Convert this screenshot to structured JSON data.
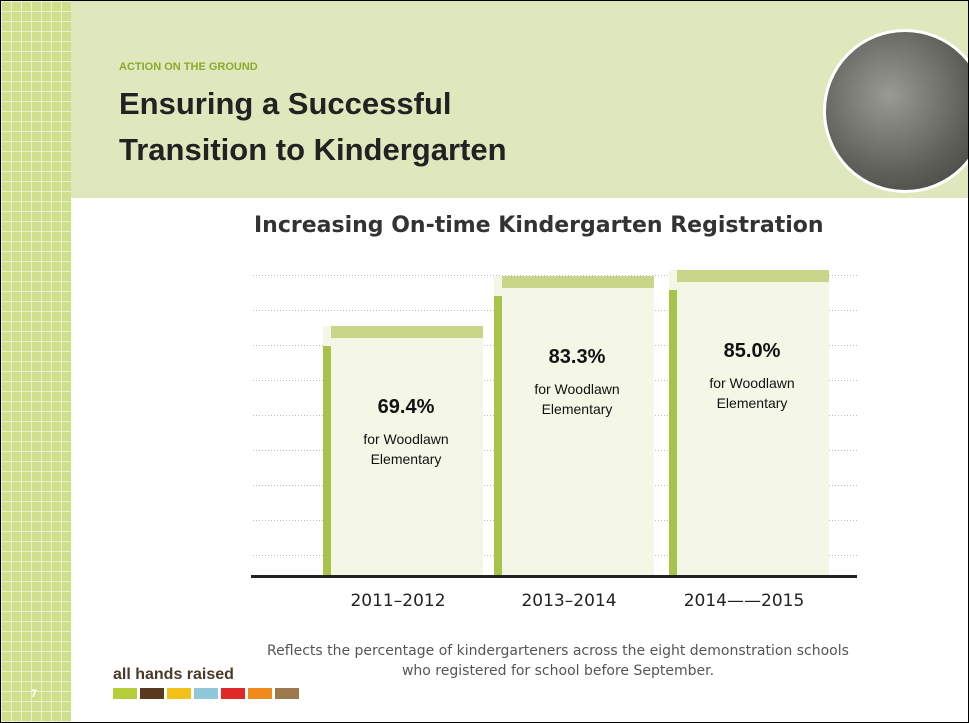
{
  "header": {
    "kicker": "ACTION ON THE GROUND",
    "title": "Ensuring a Successful Transition to Kindergarten"
  },
  "chart_data": {
    "type": "bar",
    "title": "Increasing On-time Kindergarten Registration",
    "categories": [
      "2011–2012",
      "2013–2014",
      "2014——2015"
    ],
    "values": [
      69.4,
      83.3,
      85.0
    ],
    "value_labels": [
      "69.4%",
      "83.3%",
      "85.0%"
    ],
    "notes": [
      "for Woodlawn Elementary",
      "for Woodlawn Elementary",
      "for Woodlawn Elementary"
    ],
    "ylim": [
      0,
      100
    ],
    "color": "#f4f7e6"
  },
  "caption": "Reflects the percentage of kindergarteners across the eight demonstration schools who registered for school before September.",
  "logo": "all hands raised",
  "page_number": "7"
}
